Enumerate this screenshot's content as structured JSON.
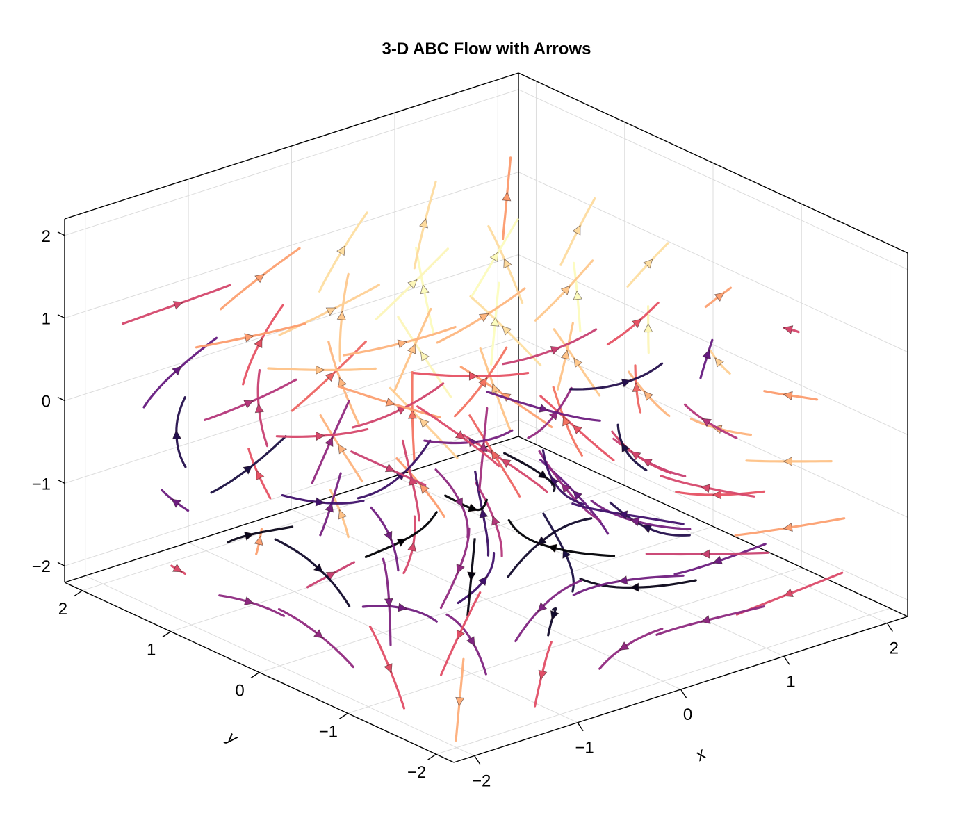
{
  "chart_data": {
    "type": "streamplot-3d",
    "title": "3-D ABC Flow with Arrows",
    "xlabel": "x",
    "ylabel": "y",
    "zlabel": "",
    "xlim": [
      -2.2,
      2.2
    ],
    "ylim": [
      -2.2,
      2.2
    ],
    "zlim": [
      -2.2,
      2.2
    ],
    "x_ticks": [
      "−2",
      "−1",
      "0",
      "1",
      "2"
    ],
    "y_ticks": [
      "−2",
      "−1",
      "0",
      "1",
      "2"
    ],
    "z_ticks": [
      "−2",
      "−1",
      "0",
      "1",
      "2"
    ],
    "x_tick_values": [
      -2,
      -1,
      0,
      1,
      2
    ],
    "y_tick_values": [
      -2,
      -1,
      0,
      1,
      2
    ],
    "z_tick_values": [
      -2,
      -1,
      0,
      1,
      2
    ],
    "flow": {
      "name": "ABC",
      "A": 1,
      "B": 1,
      "C": 1
    },
    "colormap": "magma",
    "grid": true,
    "legend": "none"
  }
}
